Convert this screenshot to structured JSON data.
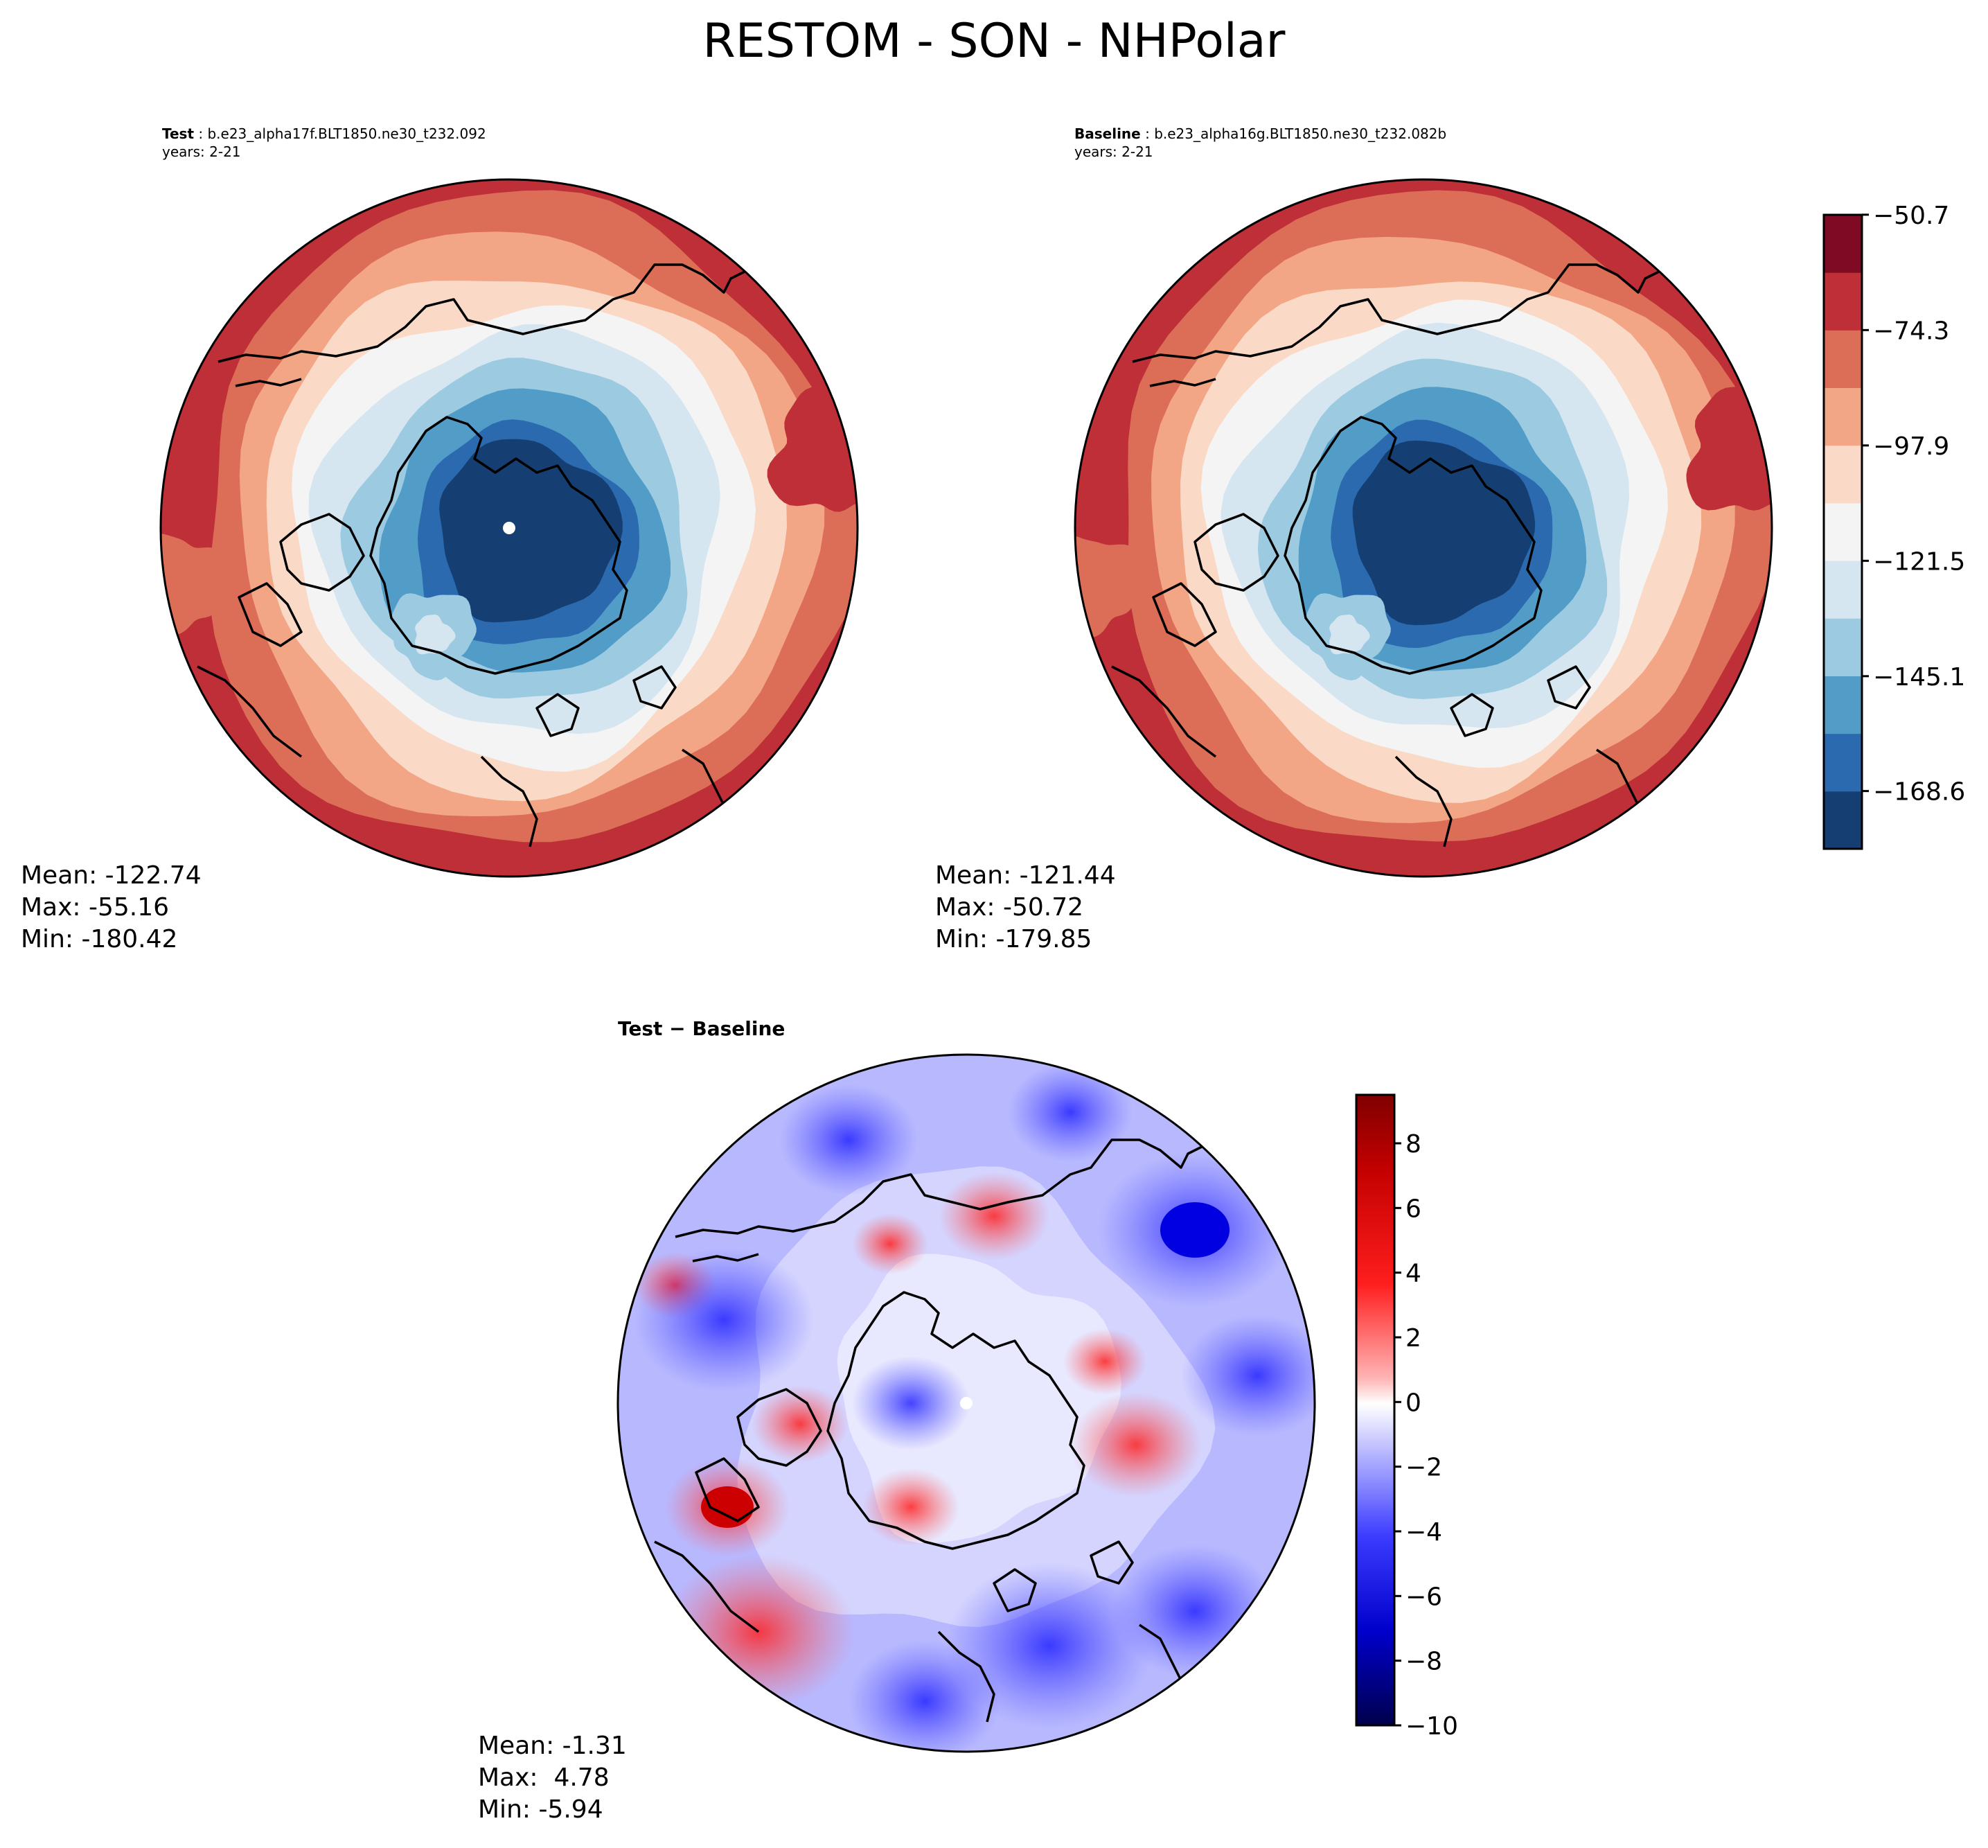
{
  "title": "RESTOM - SON - NHPolar",
  "chart_data": [
    {
      "type": "heatmap",
      "projection": "north-polar-stereographic",
      "panel": "test",
      "label": "Test",
      "case": "b.e23_alpha17f.BLT1850.ne30_t232.092",
      "years": "years: 2-21",
      "stats": {
        "mean": "Mean: -122.74",
        "max": "Max: -55.16",
        "min": "Min: -180.42"
      }
    },
    {
      "type": "heatmap",
      "projection": "north-polar-stereographic",
      "panel": "baseline",
      "label": "Baseline",
      "case": "b.e23_alpha16g.BLT1850.ne30_t232.082b",
      "years": "years: 2-21",
      "stats": {
        "mean": "Mean: -121.44",
        "max": "Max: -50.72",
        "min": "Min: -179.85"
      },
      "colorbar": {
        "cmap": "RdBu_r",
        "levels": 11,
        "range": [
          -180.42,
          -50.72
        ],
        "tick_values": [
          -50.7,
          -74.3,
          -97.9,
          -121.5,
          -145.1,
          -168.6
        ],
        "tick_labels": [
          "−50.7",
          "−74.3",
          "−97.9",
          "−121.5",
          "−145.1",
          "−168.6"
        ],
        "colors": [
          "#153f72",
          "#2b6aaf",
          "#529dc8",
          "#9ccbe1",
          "#d5e6f1",
          "#f4f4f4",
          "#fbd9c7",
          "#f2a685",
          "#dc6e57",
          "#be2f37",
          "#7f0a23"
        ]
      }
    },
    {
      "type": "heatmap",
      "projection": "north-polar-stereographic",
      "panel": "difference",
      "title": "Test − Baseline",
      "stats": {
        "mean": "Mean: -1.31",
        "max": "Max:  4.78",
        "min": "Min: -5.94"
      },
      "colorbar": {
        "cmap": "seismic",
        "range": [
          -10,
          9.5
        ],
        "tick_values": [
          8,
          6,
          4,
          2,
          0,
          -2,
          -4,
          -6,
          -8,
          -10
        ],
        "tick_labels": [
          "8",
          "6",
          "4",
          "2",
          "0",
          "−2",
          "−4",
          "−6",
          "−8",
          "−10"
        ]
      }
    }
  ]
}
